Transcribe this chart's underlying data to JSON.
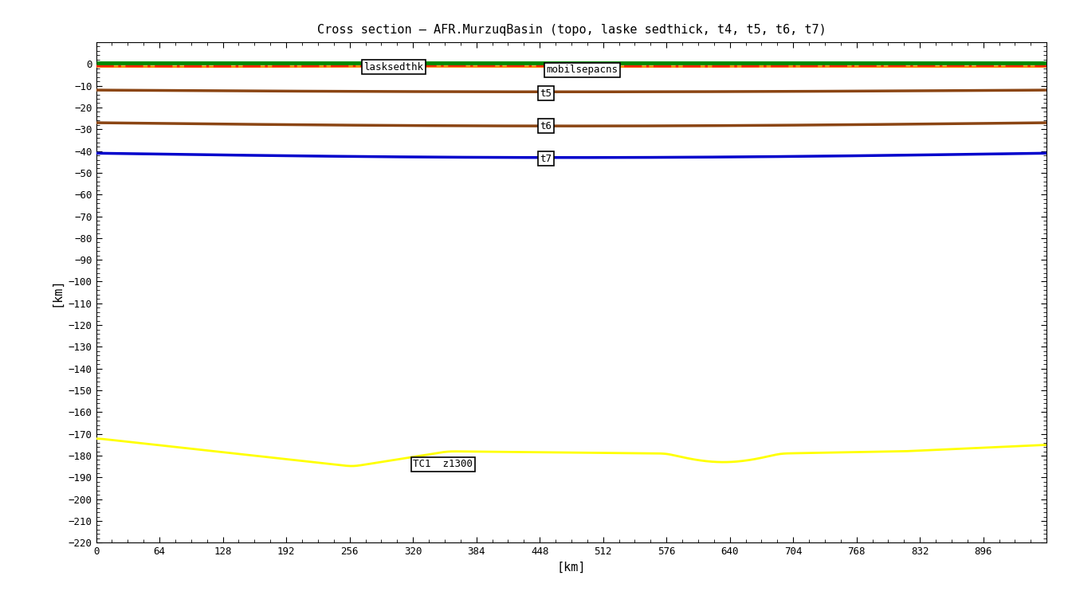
{
  "title": "Cross section – AFR.MurzuqBasin (topo, laske sedthick, t4, t5, t6, t7)",
  "xlabel": "[km]",
  "ylabel": "[km]",
  "xlim": [
    0,
    960
  ],
  "ylim": [
    -220,
    10
  ],
  "xticks": [
    0,
    64,
    128,
    192,
    256,
    320,
    384,
    448,
    512,
    576,
    640,
    704,
    768,
    832,
    896
  ],
  "yticks": [
    0,
    -10,
    -20,
    -30,
    -40,
    -50,
    -60,
    -70,
    -80,
    -90,
    -100,
    -110,
    -120,
    -130,
    -140,
    -150,
    -160,
    -170,
    -180,
    -190,
    -200,
    -210,
    -220
  ],
  "bg_color": "white",
  "topo_color": "#008800",
  "topo_lw": 3.5,
  "laske_color": "#ff2200",
  "laske_lw": 2.5,
  "t4_color": "#ff8800",
  "t4_lw": 2.0,
  "t5_color": "#8B4513",
  "t5_lw": 2.5,
  "t6_color": "#8B4513",
  "t6_lw": 2.5,
  "t7_color": "#0000cc",
  "t7_lw": 2.5,
  "tc1_color": "#ffff00",
  "tc1_lw": 2.0,
  "label_fontsize": 9,
  "tick_fontsize": 9,
  "title_fontsize": 11,
  "axis_label_fontsize": 11,
  "laske_label": "lasksedthk",
  "t4_label": "mobilsepacns",
  "t5_label": "t5",
  "t6_label": "t6",
  "t7_label": "t7",
  "tc1_label": "TC1  z1300"
}
